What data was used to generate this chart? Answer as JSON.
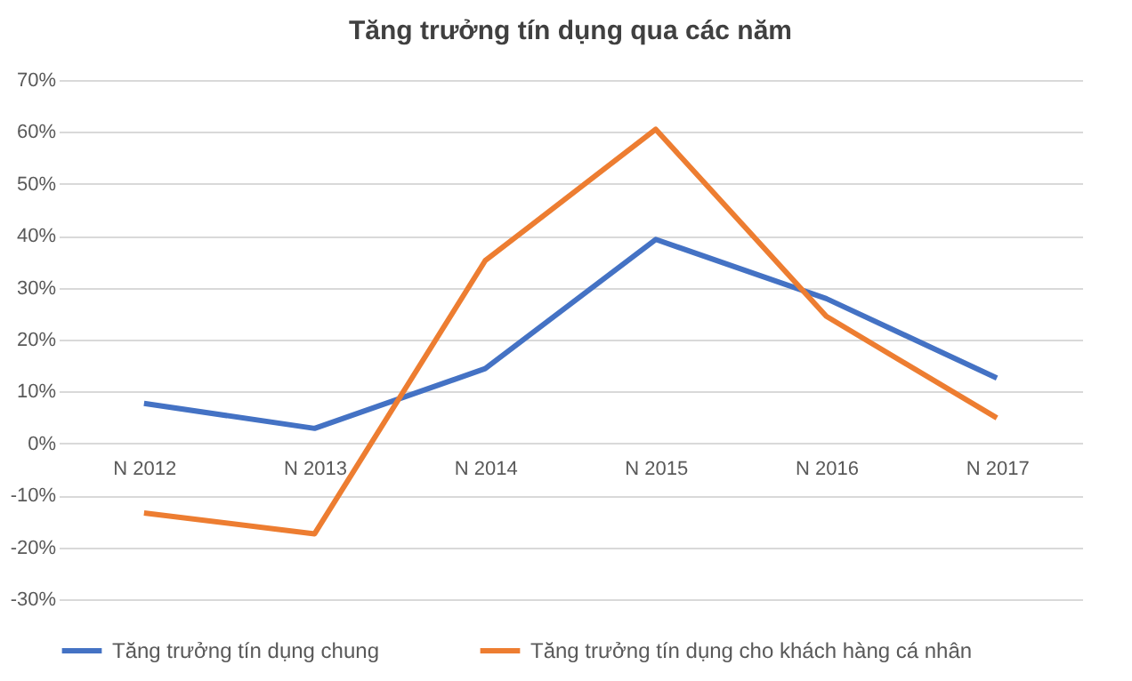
{
  "chart_data": {
    "type": "line",
    "title": "Tăng trưởng tín dụng qua các năm",
    "categories": [
      "N 2012",
      "N 2013",
      "N 2014",
      "N 2015",
      "N 2016",
      "N 2017"
    ],
    "series": [
      {
        "name": "Tăng trưởng tín dụng chung",
        "color": "#4472c4",
        "values": [
          7.7,
          2.9,
          14.4,
          39.3,
          27.9,
          12.6
        ]
      },
      {
        "name": "Tăng trưởng tín dụng cho khách hàng cá nhân",
        "color": "#ed7d31",
        "values": [
          -13.4,
          -17.4,
          35.2,
          60.5,
          24.5,
          4.9
        ]
      }
    ],
    "ylim": [
      -30,
      70
    ],
    "yticks": [
      {
        "value": -30,
        "label": "-30%"
      },
      {
        "value": -20,
        "label": "-20%"
      },
      {
        "value": -10,
        "label": "-10%"
      },
      {
        "value": 0,
        "label": "0%"
      },
      {
        "value": 10,
        "label": "10%"
      },
      {
        "value": 20,
        "label": "20%"
      },
      {
        "value": 30,
        "label": "30%"
      },
      {
        "value": 40,
        "label": "40%"
      },
      {
        "value": 50,
        "label": "50%"
      },
      {
        "value": 60,
        "label": "60%"
      },
      {
        "value": 70,
        "label": "70%"
      }
    ],
    "grid": "y",
    "legend": "bottom",
    "marker": "none",
    "line_style": "solid"
  }
}
